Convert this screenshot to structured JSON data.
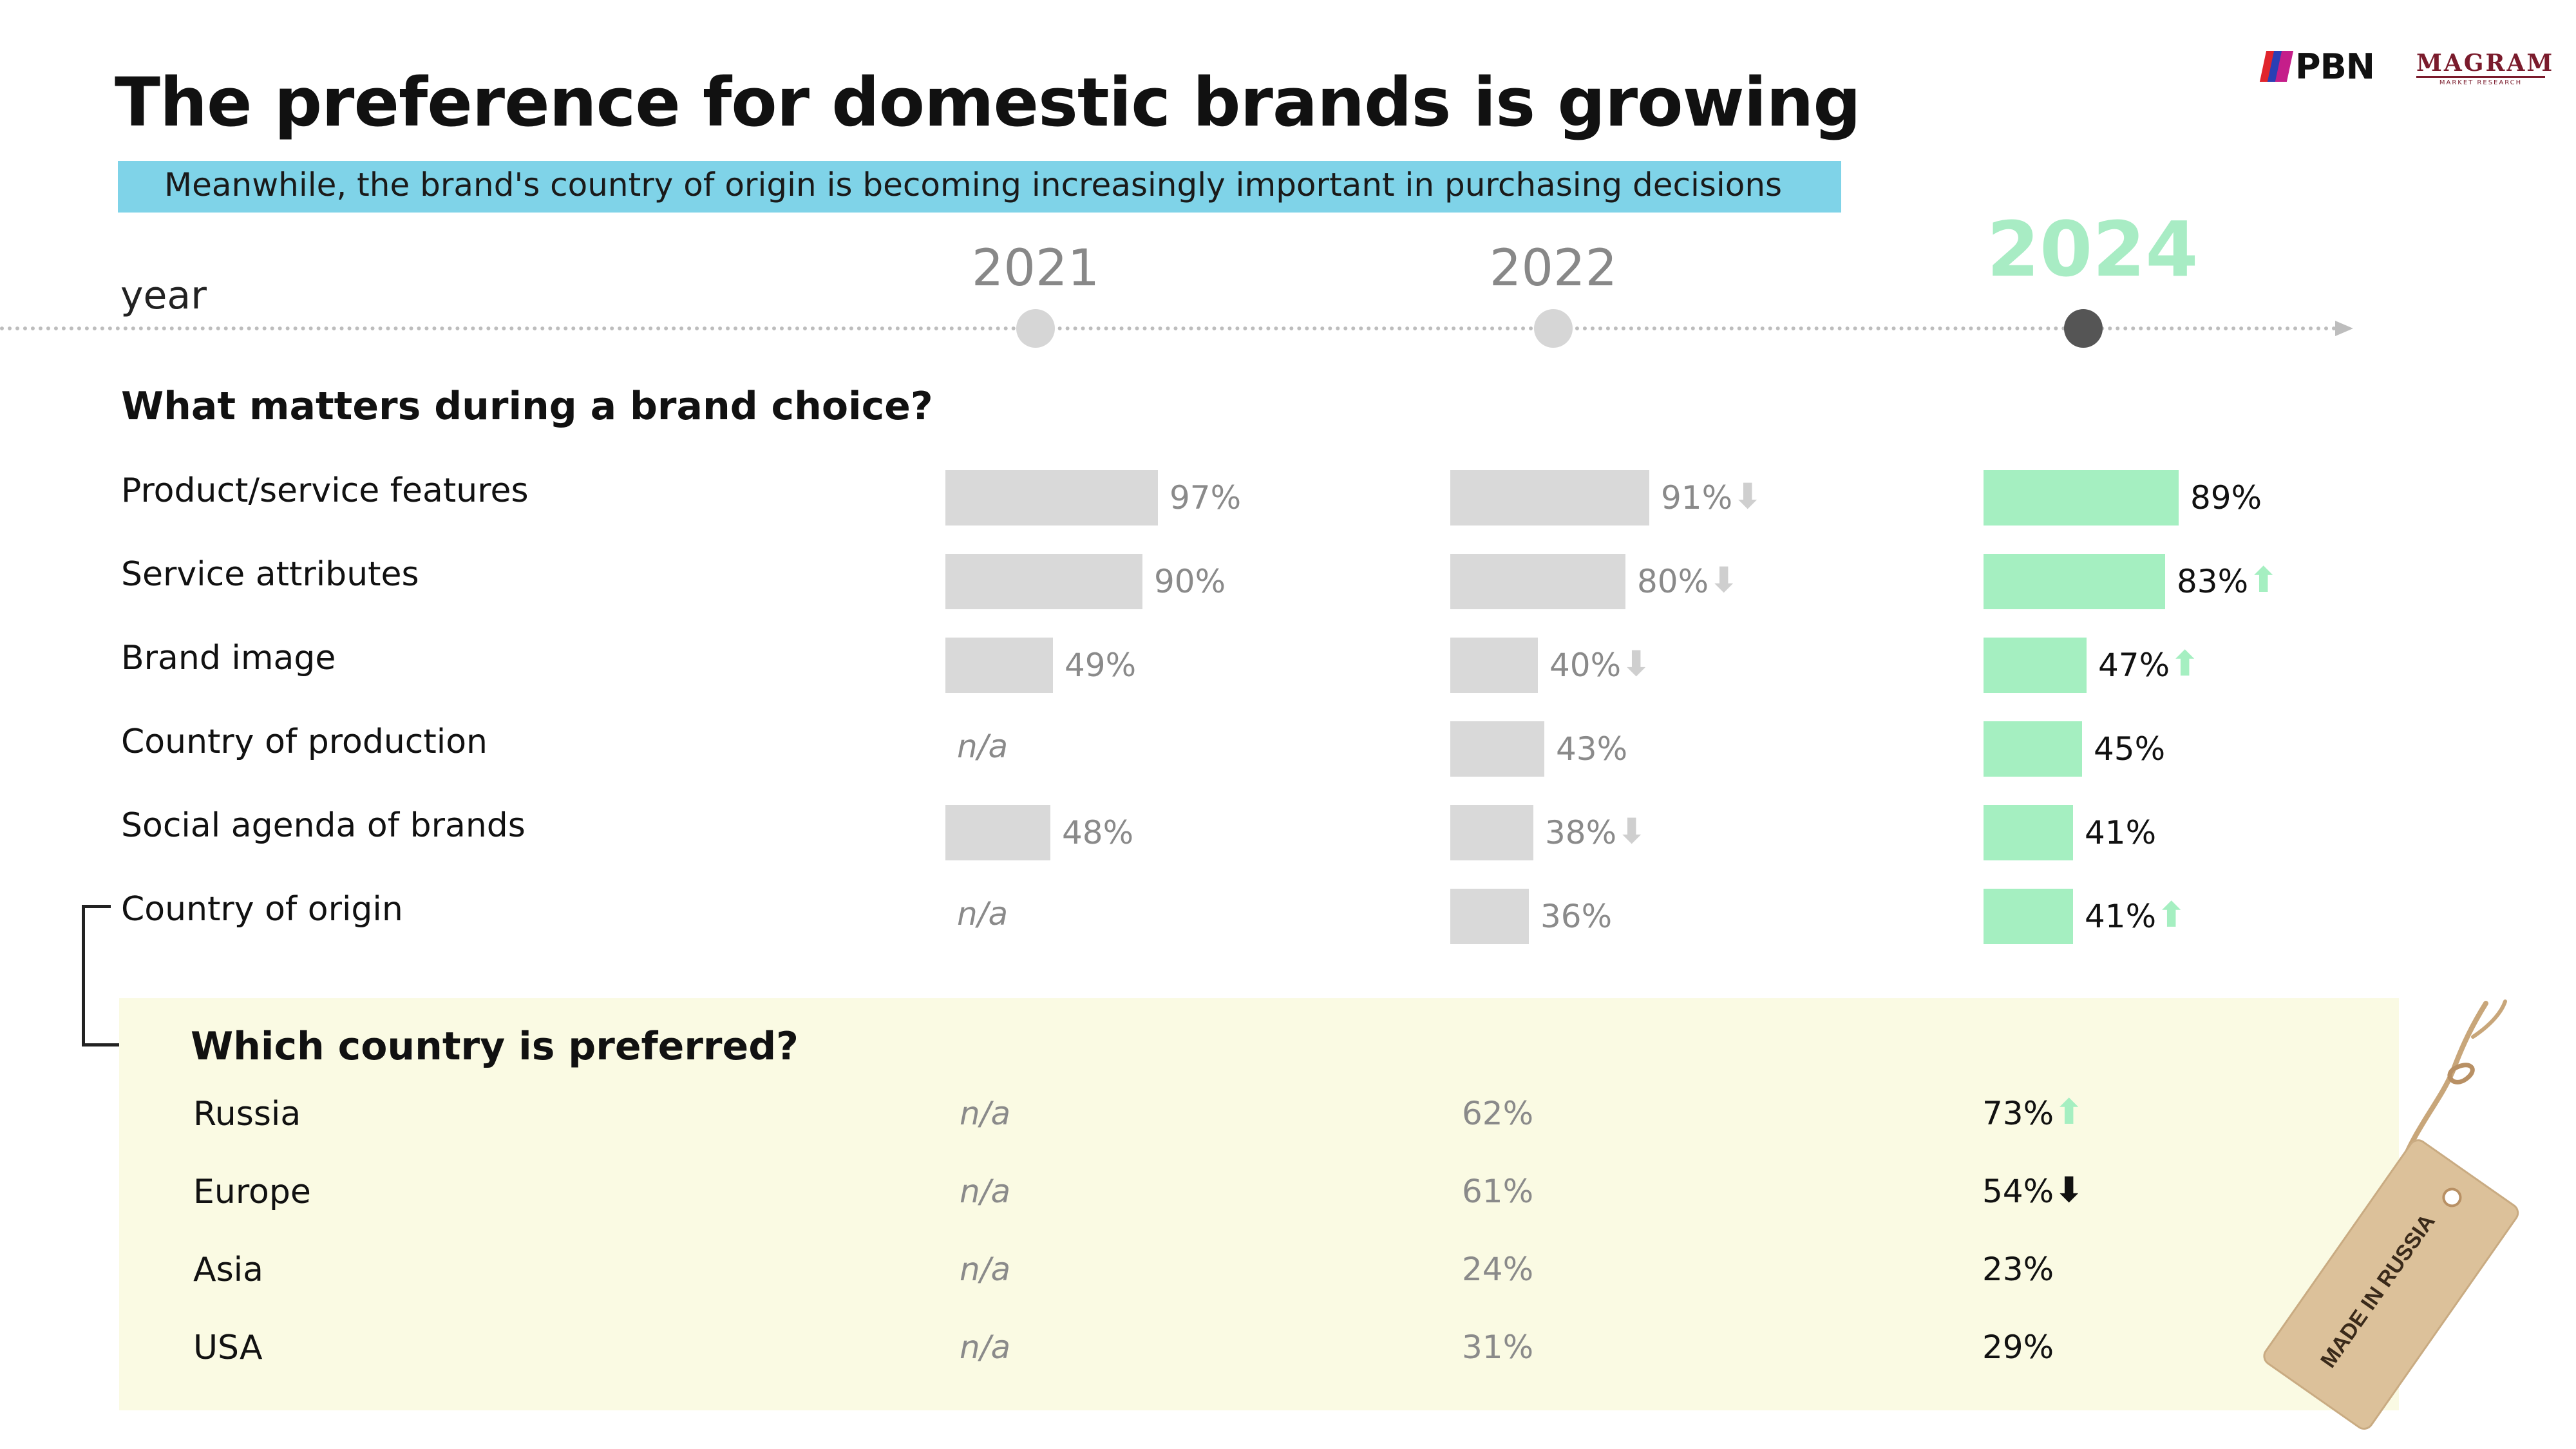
{
  "title": "The preference for domestic brands is growing",
  "subtitle": "Meanwhile, the brand's country of origin is becoming increasingly important in purchasing decisions",
  "logos": {
    "pbn": "PBN",
    "magram": "MAGRAM",
    "magram_sub": "MARKET RESEARCH"
  },
  "timeline": {
    "label": "year",
    "years": [
      "2021",
      "2022",
      "2024"
    ]
  },
  "sections": {
    "brand_choice": "What matters during a brand choice?",
    "country_pref": "Which country is preferred?"
  },
  "tag_text": "MADE IN RUSSIA",
  "colors": {
    "highlight": "#a5efc1",
    "grey_bar": "#d9d9d9",
    "subtitle_band": "#7fd3e8",
    "panel": "#fafae3"
  },
  "chart_data": [
    {
      "type": "bar",
      "title": "What matters during a brand choice?",
      "categories": [
        "Product/service features",
        "Service attributes",
        "Brand image",
        "Country of production",
        "Social agenda of brands",
        "Country of origin"
      ],
      "series": [
        {
          "name": "2021",
          "values": [
            97,
            90,
            49,
            null,
            48,
            null
          ],
          "labels": [
            "97%",
            "90%",
            "49%",
            "n/a",
            "48%",
            "n/a"
          ],
          "trend": [
            null,
            null,
            null,
            null,
            null,
            null
          ]
        },
        {
          "name": "2022",
          "values": [
            91,
            80,
            40,
            43,
            38,
            36
          ],
          "labels": [
            "91%",
            "80%",
            "40%",
            "43%",
            "38%",
            "36%"
          ],
          "trend": [
            "down",
            "down",
            "down",
            null,
            "down",
            null
          ]
        },
        {
          "name": "2024",
          "values": [
            89,
            83,
            47,
            45,
            41,
            41
          ],
          "labels": [
            "89%",
            "83%",
            "47%",
            "45%",
            "41%",
            "41%"
          ],
          "trend": [
            null,
            "up",
            "up",
            null,
            null,
            "up"
          ]
        }
      ],
      "ylim": [
        0,
        100
      ]
    },
    {
      "type": "table",
      "title": "Which country is preferred?",
      "categories": [
        "Russia",
        "Europe",
        "Asia",
        "USA"
      ],
      "series": [
        {
          "name": "2021",
          "values": [
            null,
            null,
            null,
            null
          ],
          "labels": [
            "n/a",
            "n/a",
            "n/a",
            "n/a"
          ],
          "trend": [
            null,
            null,
            null,
            null
          ]
        },
        {
          "name": "2022",
          "values": [
            62,
            61,
            24,
            31
          ],
          "labels": [
            "62%",
            "61%",
            "24%",
            "31%"
          ],
          "trend": [
            null,
            null,
            null,
            null
          ]
        },
        {
          "name": "2024",
          "values": [
            73,
            54,
            23,
            29
          ],
          "labels": [
            "73%",
            "54%",
            "23%",
            "29%"
          ],
          "trend": [
            "up",
            "down",
            null,
            null
          ]
        }
      ]
    }
  ]
}
